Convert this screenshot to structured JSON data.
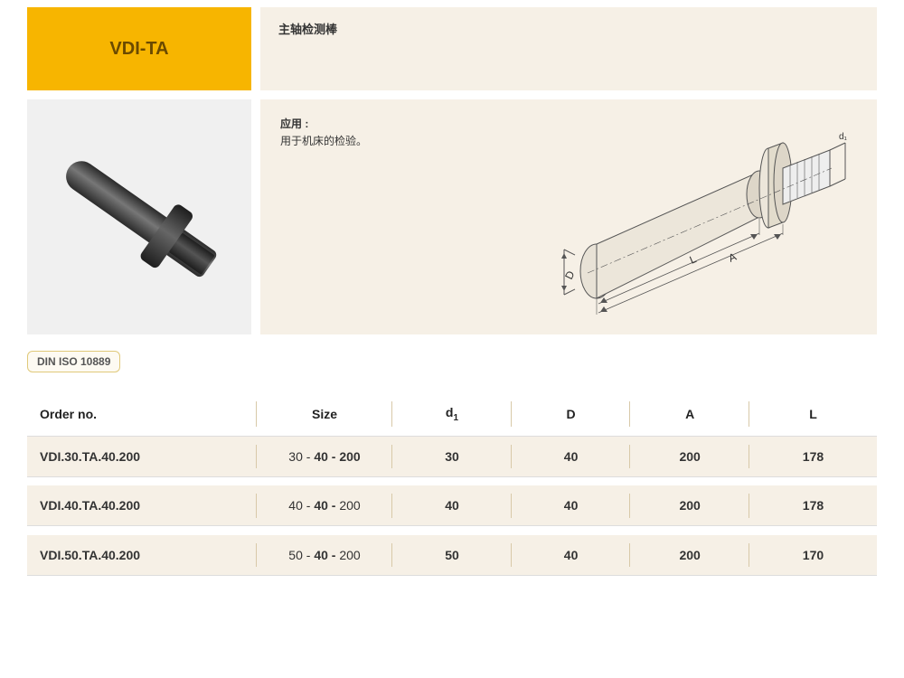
{
  "header": {
    "product_code": "VDI-TA",
    "title_cn": "主轴检测棒"
  },
  "description": {
    "app_label": "应用 :",
    "app_text": "用于机床的检验。"
  },
  "diagram_labels": {
    "d1": "d1",
    "D": "D",
    "L": "L",
    "A": "A"
  },
  "standard": "DIN ISO 10889",
  "table": {
    "columns": [
      "Order no.",
      "Size",
      "d1",
      "D",
      "A",
      "L"
    ],
    "rows": [
      {
        "order": "VDI.30.TA.40.200",
        "size_pre": "30",
        "size_mid": "40",
        "size_post": "200",
        "size_post_bold": true,
        "d1": "30",
        "D": "40",
        "A": "200",
        "L": "178"
      },
      {
        "order": "VDI.40.TA.40.200",
        "size_pre": "40",
        "size_mid": "40",
        "size_post": "200",
        "size_post_bold": false,
        "d1": "40",
        "D": "40",
        "A": "200",
        "L": "178"
      },
      {
        "order": "VDI.50.TA.40.200",
        "size_pre": "50",
        "size_mid": "40",
        "size_post": "200",
        "size_post_bold": false,
        "d1": "50",
        "D": "40",
        "A": "200",
        "L": "170"
      }
    ]
  },
  "colors": {
    "accent_yellow": "#f7b500",
    "panel_cream": "#f6f0e6",
    "photo_bg": "#f0f0f0",
    "border": "#d8c9a8"
  }
}
